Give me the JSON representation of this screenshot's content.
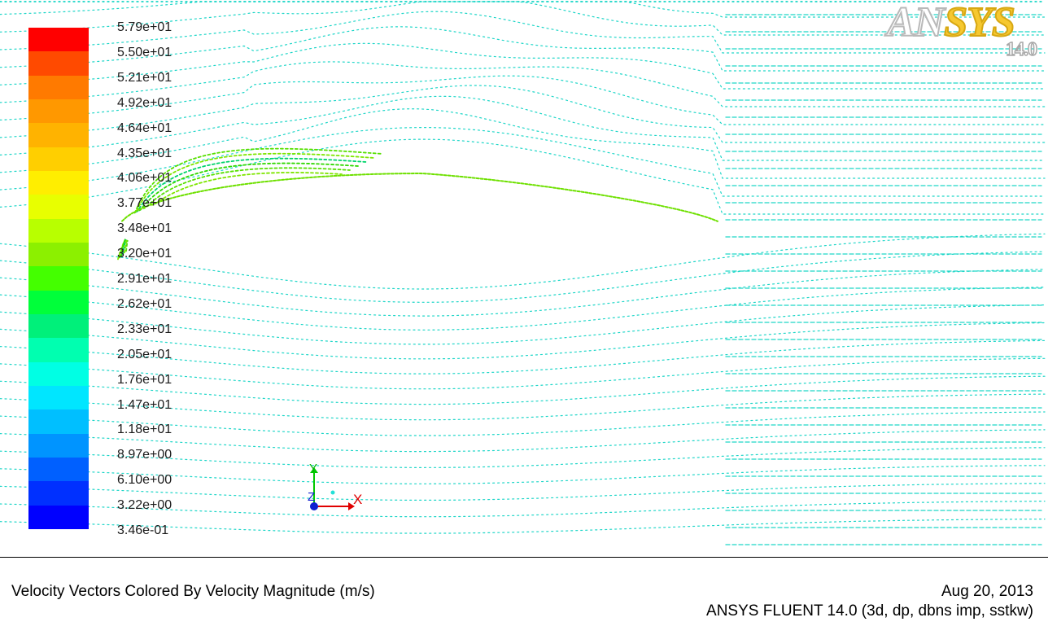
{
  "colormap": {
    "labels": [
      "5.79e+01",
      "5.50e+01",
      "5.21e+01",
      "4.92e+01",
      "4.64e+01",
      "4.35e+01",
      "4.06e+01",
      "3.77e+01",
      "3.48e+01",
      "3.20e+01",
      "2.91e+01",
      "2.62e+01",
      "2.33e+01",
      "2.05e+01",
      "1.76e+01",
      "1.47e+01",
      "1.18e+01",
      "8.97e+00",
      "6.10e+00",
      "3.22e+00",
      "3.46e-01"
    ],
    "colors": [
      "#ff0000",
      "#ff4a00",
      "#ff7a00",
      "#ff9800",
      "#ffb300",
      "#ffcf00",
      "#ffee00",
      "#e8ff00",
      "#b8ff00",
      "#8cf000",
      "#44ff00",
      "#00ff3a",
      "#00f07a",
      "#00ffb0",
      "#00ffe4",
      "#00e6ff",
      "#00bfff",
      "#0094ff",
      "#0060ff",
      "#0030ff",
      "#0000ff"
    ],
    "vector_color": "#1fd6c8"
  },
  "logo": {
    "brand_main": "AN",
    "brand_accent": "SYS",
    "version": "14.0"
  },
  "axes": {
    "y": "Y",
    "z": "Z",
    "x": "X"
  },
  "caption": {
    "title": "Velocity Vectors Colored By Velocity Magnitude (m/s)",
    "date": "Aug 20, 2013",
    "solver": "ANSYS FLUENT 14.0 (3d, dp, dbns imp, sstkw)"
  }
}
